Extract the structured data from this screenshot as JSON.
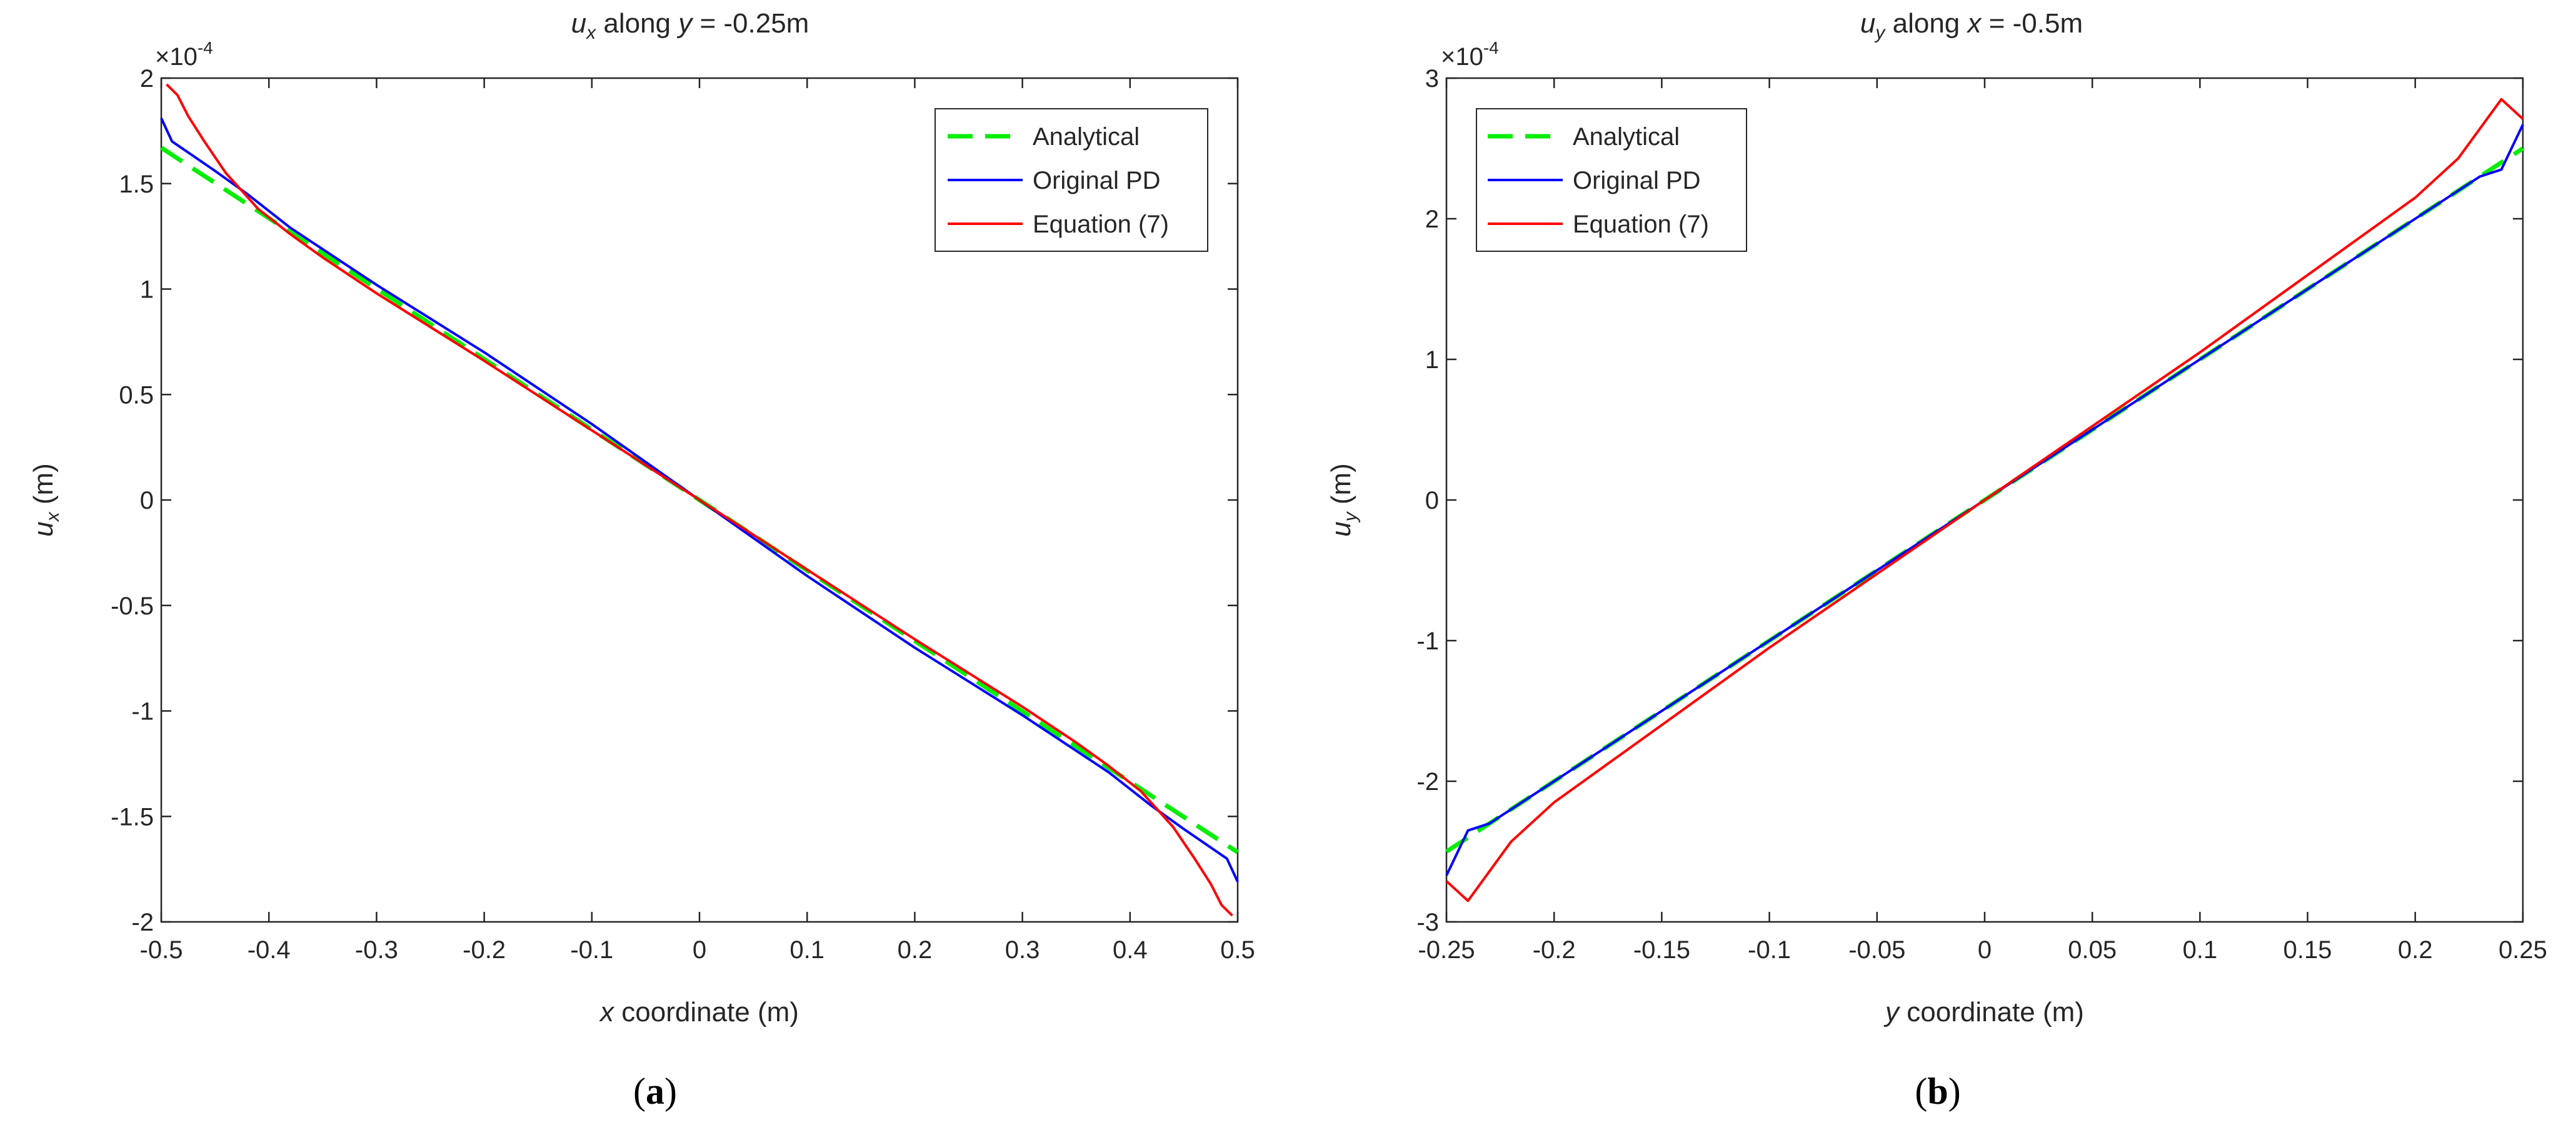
{
  "colors": {
    "analytical": "#00ee00",
    "original": "#0000ff",
    "equation": "#ff0000",
    "axis": "#262626",
    "text": "#262626"
  },
  "chart_data": [
    {
      "type": "line",
      "title": {
        "var": "u",
        "var_sub": "x",
        "mid": " along ",
        "coord": "y",
        "rest": " = -0.25m"
      },
      "xlabel": {
        "var": "x",
        "rest": " coordinate (m)"
      },
      "ylabel": {
        "var": "u",
        "sub": "x",
        "rest": " (m)"
      },
      "exponent": {
        "base": "×10",
        "power": "-4"
      },
      "xlim": [
        -0.5,
        0.5
      ],
      "ylim": [
        -2,
        2
      ],
      "xticks": [
        "-0.5",
        "-0.4",
        "-0.3",
        "-0.2",
        "-0.1",
        "0",
        "0.1",
        "0.2",
        "0.3",
        "0.4",
        "0.5"
      ],
      "yticks": [
        "2",
        "1.5",
        "1",
        "0.5",
        "0",
        "-0.5",
        "-1",
        "-1.5",
        "-2"
      ],
      "legend_position": "top-right",
      "panel_label": {
        "open": "(",
        "letter": "a",
        "close": ")"
      },
      "series": [
        {
          "name": "Analytical",
          "style": "dashed",
          "color_key": "analytical",
          "x": [
            -0.5,
            0.5
          ],
          "y": [
            1.67,
            -1.67
          ]
        },
        {
          "name": "Original PD",
          "style": "solid",
          "color_key": "original",
          "x": [
            -0.5,
            -0.49,
            -0.47,
            -0.45,
            -0.42,
            -0.38,
            -0.3,
            -0.2,
            -0.1,
            0,
            0.1,
            0.2,
            0.3,
            0.38,
            0.42,
            0.45,
            0.47,
            0.49,
            0.5
          ],
          "y": [
            1.81,
            1.7,
            1.63,
            1.56,
            1.45,
            1.29,
            1.02,
            0.7,
            0.36,
            0,
            -0.36,
            -0.7,
            -1.02,
            -1.29,
            -1.45,
            -1.56,
            -1.63,
            -1.7,
            -1.81
          ]
        },
        {
          "name": "Equation (7)",
          "style": "solid",
          "color_key": "equation",
          "x": [
            -0.495,
            -0.485,
            -0.475,
            -0.46,
            -0.44,
            -0.41,
            -0.38,
            -0.35,
            -0.3,
            -0.2,
            -0.1,
            0,
            0.1,
            0.2,
            0.3,
            0.35,
            0.38,
            0.41,
            0.44,
            0.46,
            0.475,
            0.485,
            0.495
          ],
          "y": [
            1.97,
            1.92,
            1.82,
            1.7,
            1.55,
            1.38,
            1.26,
            1.15,
            0.98,
            0.66,
            0.33,
            0,
            -0.33,
            -0.66,
            -0.98,
            -1.15,
            -1.26,
            -1.38,
            -1.55,
            -1.7,
            -1.82,
            -1.92,
            -1.97
          ]
        }
      ]
    },
    {
      "type": "line",
      "title": {
        "var": "u",
        "var_sub": "y",
        "mid": " along ",
        "coord": "x",
        "rest": " = -0.5m"
      },
      "xlabel": {
        "var": "y",
        "rest": " coordinate (m)"
      },
      "ylabel": {
        "var": "u",
        "sub": "y",
        "rest": " (m)"
      },
      "exponent": {
        "base": "×10",
        "power": "-4"
      },
      "xlim": [
        -0.25,
        0.25
      ],
      "ylim": [
        -3,
        3
      ],
      "xticks": [
        "-0.25",
        "-0.2",
        "-0.15",
        "-0.1",
        "-0.05",
        "0",
        "0.05",
        "0.1",
        "0.15",
        "0.2",
        "0.25"
      ],
      "yticks": [
        "3",
        "2",
        "1",
        "0",
        "-1",
        "-2",
        "-3"
      ],
      "legend_position": "top-left",
      "panel_label": {
        "open": "(",
        "letter": "b",
        "close": ")"
      },
      "series": [
        {
          "name": "Analytical",
          "style": "dashed",
          "color_key": "analytical",
          "x": [
            -0.25,
            0.25
          ],
          "y": [
            -2.5,
            2.5
          ]
        },
        {
          "name": "Original PD",
          "style": "solid",
          "color_key": "original",
          "x": [
            -0.25,
            -0.24,
            -0.23,
            -0.22,
            -0.2,
            -0.1,
            0,
            0.1,
            0.2,
            0.22,
            0.23,
            0.24,
            0.25
          ],
          "y": [
            -2.67,
            -2.35,
            -2.3,
            -2.2,
            -2.0,
            -1.0,
            0,
            1.0,
            2.0,
            2.2,
            2.3,
            2.35,
            2.67
          ]
        },
        {
          "name": "Equation (7)",
          "style": "solid",
          "color_key": "equation",
          "x": [
            -0.25,
            -0.24,
            -0.22,
            -0.2,
            -0.1,
            0,
            0.1,
            0.2,
            0.22,
            0.24,
            0.25
          ],
          "y": [
            -2.71,
            -2.85,
            -2.43,
            -2.15,
            -1.05,
            0,
            1.05,
            2.15,
            2.43,
            2.85,
            2.71
          ]
        }
      ]
    }
  ]
}
